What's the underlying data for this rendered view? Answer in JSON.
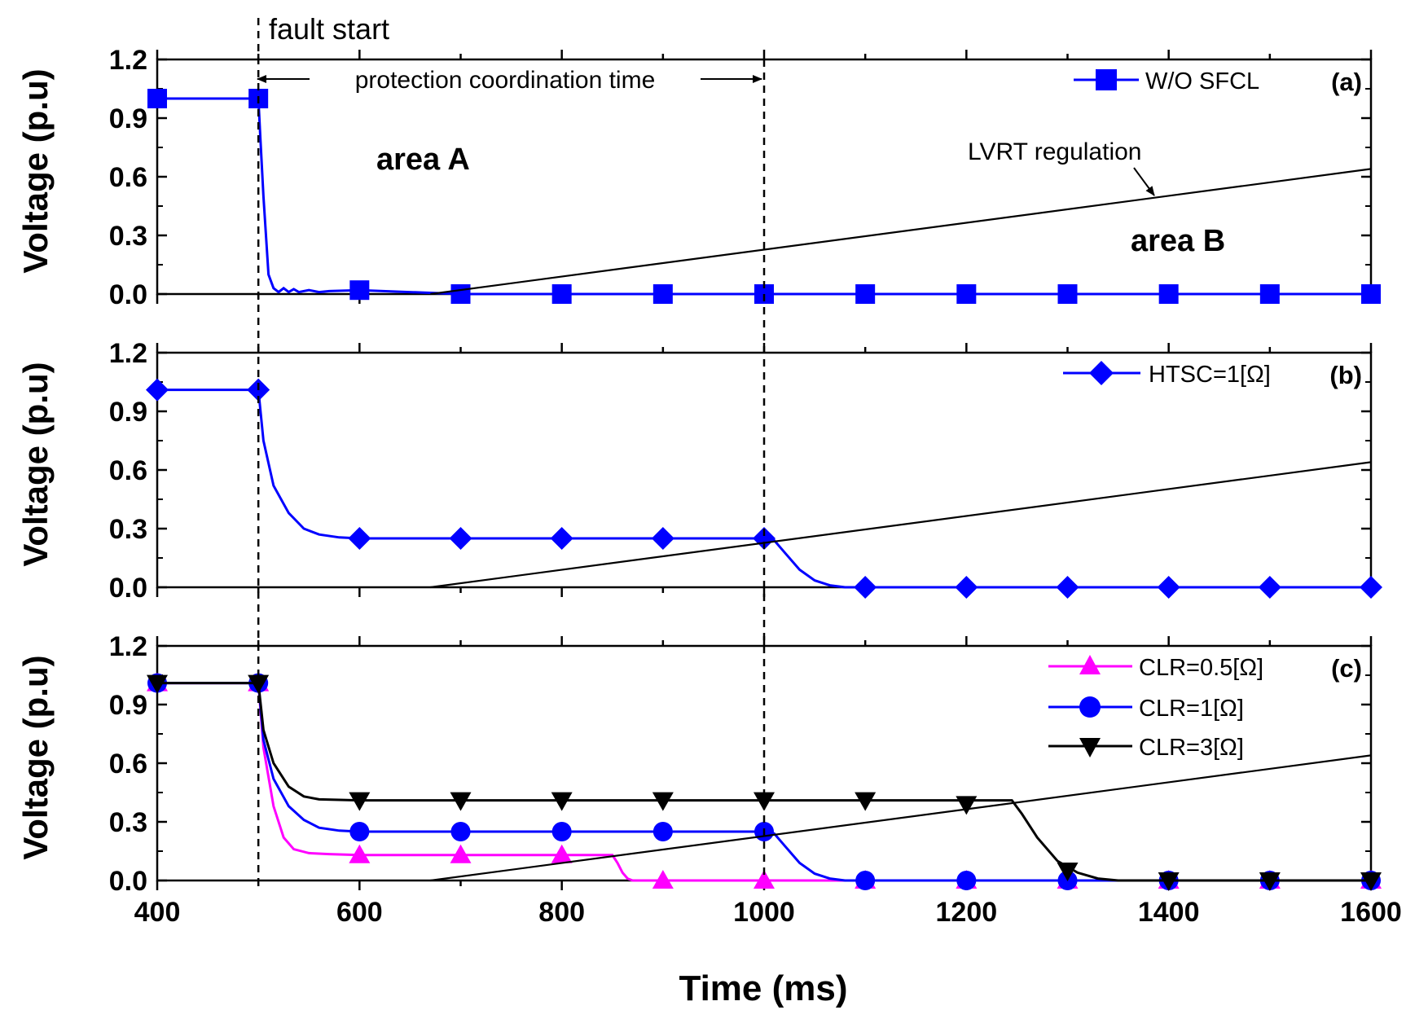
{
  "chart_data": [
    {
      "panel": "(a)",
      "type": "line",
      "ylabel": "Voltage (p.u)",
      "xlim": [
        400,
        1600
      ],
      "ylim": [
        0,
        1.2
      ],
      "yticks": [
        "0.0",
        "0.3",
        "0.6",
        "0.9",
        "1.2"
      ],
      "series": [
        {
          "name": "W/O SFCL",
          "color": "#0000ff",
          "marker": "square",
          "x": [
            400,
            500,
            502,
            505,
            510,
            515,
            520,
            525,
            530,
            535,
            540,
            550,
            560,
            570,
            600,
            700,
            800,
            900,
            1000,
            1100,
            1200,
            1300,
            1400,
            1500,
            1600
          ],
          "y": [
            1.0,
            1.0,
            0.8,
            0.5,
            0.1,
            0.03,
            0.01,
            0.03,
            0.01,
            0.025,
            0.01,
            0.02,
            0.01,
            0.015,
            0.02,
            0.0,
            0.0,
            0.0,
            0.0,
            0.0,
            0.0,
            0.0,
            0.0,
            0.0,
            0.0
          ],
          "marker_x": [
            400,
            500,
            600,
            700,
            800,
            900,
            1000,
            1100,
            1200,
            1300,
            1400,
            1500,
            1600
          ],
          "marker_y": [
            1.0,
            1.0,
            0.02,
            0.0,
            0.0,
            0.0,
            0.0,
            0.0,
            0.0,
            0.0,
            0.0,
            0.0,
            0.0
          ]
        },
        {
          "name": "LVRT regulation",
          "color": "#000000",
          "marker": "none",
          "x": [
            670,
            1600
          ],
          "y": [
            0.0,
            0.64
          ]
        }
      ]
    },
    {
      "panel": "(b)",
      "type": "line",
      "ylabel": "Voltage (p.u)",
      "xlim": [
        400,
        1600
      ],
      "ylim": [
        0,
        1.2
      ],
      "yticks": [
        "0.0",
        "0.3",
        "0.6",
        "0.9",
        "1.2"
      ],
      "series": [
        {
          "name": "HTSC=1[Ω]",
          "color": "#0000ff",
          "marker": "diamond",
          "x": [
            400,
            500,
            505,
            515,
            530,
            545,
            560,
            580,
            600,
            1000,
            1010,
            1020,
            1035,
            1050,
            1065,
            1080,
            1100,
            1600
          ],
          "y": [
            1.01,
            1.01,
            0.75,
            0.52,
            0.38,
            0.3,
            0.27,
            0.255,
            0.25,
            0.25,
            0.24,
            0.18,
            0.09,
            0.035,
            0.01,
            0.0,
            0.0,
            0.0
          ],
          "marker_x": [
            400,
            500,
            600,
            700,
            800,
            900,
            1000,
            1100,
            1200,
            1300,
            1400,
            1500,
            1600
          ],
          "marker_y": [
            1.01,
            1.01,
            0.25,
            0.25,
            0.25,
            0.25,
            0.25,
            0.0,
            0.0,
            0.0,
            0.0,
            0.0,
            0.0
          ]
        },
        {
          "name": "LVRT regulation",
          "color": "#000000",
          "marker": "none",
          "x": [
            670,
            1600
          ],
          "y": [
            0.0,
            0.64
          ]
        }
      ]
    },
    {
      "panel": "(c)",
      "type": "line",
      "ylabel": "Voltage (p.u)",
      "xlabel": "Time (ms)",
      "xlim": [
        400,
        1600
      ],
      "ylim": [
        0,
        1.2
      ],
      "xticks": [
        "400",
        "600",
        "800",
        "1000",
        "1200",
        "1400",
        "1600"
      ],
      "yticks": [
        "0.0",
        "0.3",
        "0.6",
        "0.9",
        "1.2"
      ],
      "series": [
        {
          "name": "CLR=0.5[Ω]",
          "color": "#ff00ff",
          "marker": "triangle-up",
          "x": [
            400,
            500,
            505,
            515,
            525,
            535,
            550,
            570,
            600,
            850,
            855,
            860,
            865,
            870,
            1600
          ],
          "y": [
            1.01,
            1.01,
            0.68,
            0.38,
            0.22,
            0.16,
            0.14,
            0.135,
            0.13,
            0.13,
            0.09,
            0.04,
            0.01,
            0.0,
            0.0
          ],
          "marker_x": [
            400,
            500,
            600,
            700,
            800,
            900,
            1000,
            1100,
            1200,
            1300,
            1400,
            1500,
            1600
          ],
          "marker_y": [
            1.01,
            1.01,
            0.13,
            0.13,
            0.13,
            0.0,
            0.0,
            0.0,
            0.0,
            0.0,
            0.0,
            0.0,
            0.0
          ]
        },
        {
          "name": "CLR=1[Ω]",
          "color": "#0000ff",
          "marker": "circle",
          "x": [
            400,
            500,
            505,
            515,
            530,
            545,
            560,
            580,
            600,
            1000,
            1010,
            1020,
            1035,
            1050,
            1065,
            1080,
            1100,
            1600
          ],
          "y": [
            1.01,
            1.01,
            0.72,
            0.52,
            0.38,
            0.31,
            0.27,
            0.255,
            0.25,
            0.25,
            0.24,
            0.18,
            0.09,
            0.035,
            0.01,
            0.0,
            0.0,
            0.0
          ],
          "marker_x": [
            400,
            500,
            600,
            700,
            800,
            900,
            1000,
            1100,
            1200,
            1300,
            1400,
            1500,
            1600
          ],
          "marker_y": [
            1.01,
            1.01,
            0.25,
            0.25,
            0.25,
            0.25,
            0.25,
            0.0,
            0.0,
            0.0,
            0.0,
            0.0,
            0.0
          ]
        },
        {
          "name": "CLR=3[Ω]",
          "color": "#000000",
          "marker": "triangle-down",
          "x": [
            400,
            500,
            505,
            515,
            530,
            545,
            560,
            600,
            1245,
            1255,
            1270,
            1290,
            1310,
            1330,
            1350,
            1380,
            1600
          ],
          "y": [
            1.01,
            1.01,
            0.77,
            0.6,
            0.48,
            0.43,
            0.415,
            0.41,
            0.41,
            0.34,
            0.22,
            0.1,
            0.04,
            0.01,
            0.0,
            0.0,
            0.0
          ],
          "marker_x": [
            400,
            500,
            600,
            700,
            800,
            900,
            1000,
            1100,
            1200,
            1300,
            1400,
            1500,
            1600
          ],
          "marker_y": [
            1.01,
            1.01,
            0.41,
            0.41,
            0.41,
            0.41,
            0.41,
            0.41,
            0.39,
            0.05,
            0.0,
            0.0,
            0.0
          ]
        },
        {
          "name": "LVRT regulation",
          "color": "#000000",
          "marker": "none",
          "x": [
            670,
            1600
          ],
          "y": [
            0.0,
            0.64
          ]
        }
      ]
    }
  ],
  "annotations": {
    "fault_start": "fault start",
    "fault_start_x": 500,
    "coordination_end_x": 1000,
    "protection_time": "protection coordination time",
    "area_a": "area A",
    "area_b": "area B",
    "lvrt": "LVRT regulation"
  },
  "panel_labels": [
    "(a)",
    "(b)",
    "(c)"
  ]
}
